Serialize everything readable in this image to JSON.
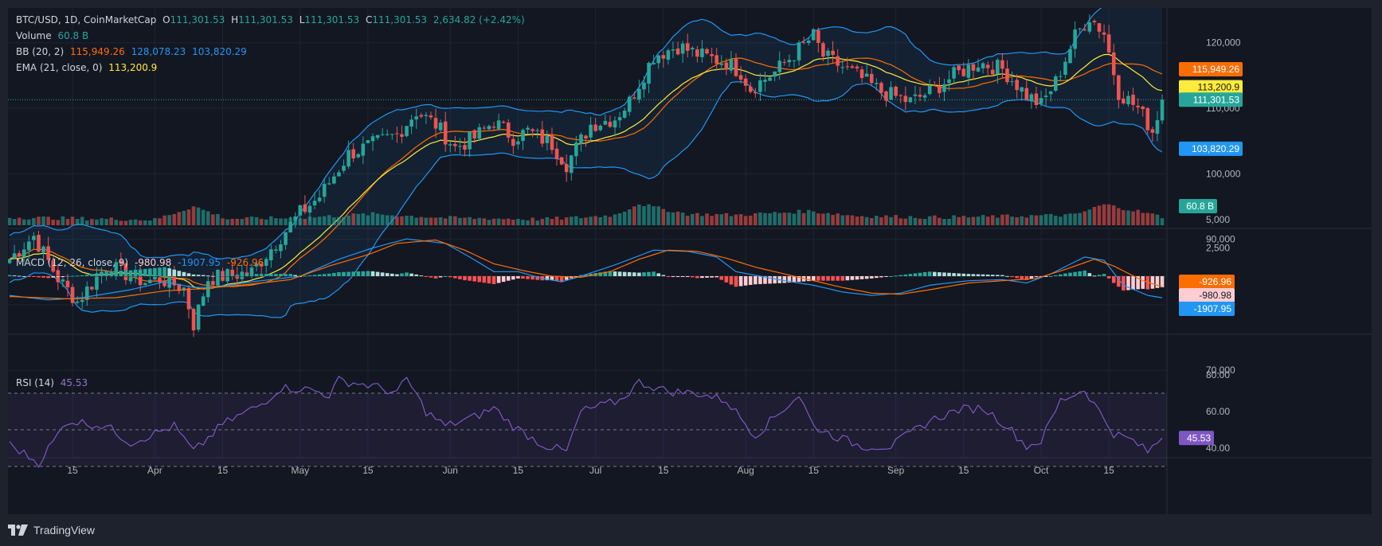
{
  "header": {
    "symbol": "BTC/USD, 1D, CoinMarketCap",
    "open_label": "O",
    "open": "111,301.53",
    "high_label": "H",
    "high": "111,301.53",
    "low_label": "L",
    "low": "111,301.53",
    "close_label": "C",
    "close": "111,301.53",
    "change": "2,634.82 (+2.42%)"
  },
  "legend": {
    "volume_label": "Volume",
    "volume_value": "60.8 B",
    "bb_label": "BB (20, 2)",
    "bb_basis": "115,949.26",
    "bb_upper": "128,078.23",
    "bb_lower": "103,820.29",
    "ema_label": "EMA (21, close, 0)",
    "ema_value": "113,200.9",
    "macd_label": "MACD (12, 26, close, 9)",
    "macd_hist": "-980.98",
    "macd_line": "-1907.95",
    "macd_signal": "-926.96",
    "rsi_label": "RSI (14)",
    "rsi_value": "45.53"
  },
  "brand": "TradingView",
  "colors": {
    "up": "#26a69a",
    "down": "#ef5350",
    "bb_band": "#2196f3",
    "bb_basis": "#ff6d00",
    "ema": "#ffeb3b",
    "macd": "#2196f3",
    "signal": "#ff6d00",
    "rsi": "#7e57c2",
    "hist_up_strong": "#26a69a",
    "hist_up_weak": "#b2dfdb",
    "hist_down_strong": "#ff5252",
    "hist_down_weak": "#ffcdd2"
  },
  "chart_data": {
    "type": "candlestick",
    "price_axis_ticks": [
      "120,000",
      "110,000",
      "100,000",
      "90,000",
      "80,000",
      "70,000"
    ],
    "price_axis_values": [
      120000,
      110000,
      100000,
      90000,
      80000,
      70000
    ],
    "macd_axis_ticks": [
      "5,000",
      "2,500"
    ],
    "macd_axis_values": [
      5000,
      2500
    ],
    "rsi_axis_ticks": [
      "80.00",
      "60.00",
      "40.00"
    ],
    "rsi_axis_values": [
      80,
      60,
      40
    ],
    "rsi_bands": [
      70,
      50,
      30
    ],
    "x_axis_ticks": [
      "15",
      "Apr",
      "15",
      "May",
      "15",
      "Jun",
      "15",
      "Jul",
      "15",
      "Aug",
      "15",
      "Sep",
      "15",
      "Oct",
      "15"
    ],
    "x_axis_days": [
      14,
      31,
      45,
      61,
      75,
      92,
      106,
      122,
      136,
      153,
      167,
      184,
      198,
      214,
      228
    ],
    "series_start_day": 1,
    "price_keypoints": [
      [
        0,
        87000
      ],
      [
        5,
        90500
      ],
      [
        10,
        84000
      ],
      [
        14,
        80500
      ],
      [
        20,
        86000
      ],
      [
        28,
        83500
      ],
      [
        31,
        84000
      ],
      [
        36,
        82500
      ],
      [
        38,
        77000
      ],
      [
        41,
        84000
      ],
      [
        50,
        85000
      ],
      [
        60,
        94000
      ],
      [
        64,
        96500
      ],
      [
        70,
        103000
      ],
      [
        75,
        104500
      ],
      [
        80,
        106000
      ],
      [
        84,
        109500
      ],
      [
        88,
        107500
      ],
      [
        92,
        104000
      ],
      [
        96,
        105500
      ],
      [
        100,
        108000
      ],
      [
        104,
        105500
      ],
      [
        107,
        106500
      ],
      [
        112,
        104500
      ],
      [
        115,
        101500
      ],
      [
        120,
        107500
      ],
      [
        125,
        108500
      ],
      [
        128,
        111000
      ],
      [
        133,
        118000
      ],
      [
        138,
        119500
      ],
      [
        143,
        118000
      ],
      [
        148,
        117000
      ],
      [
        151,
        115500
      ],
      [
        153,
        113000
      ],
      [
        158,
        115500
      ],
      [
        163,
        119000
      ],
      [
        166,
        121000
      ],
      [
        168,
        118000
      ],
      [
        175,
        115000
      ],
      [
        180,
        112500
      ],
      [
        186,
        111000
      ],
      [
        190,
        112500
      ],
      [
        195,
        115000
      ],
      [
        200,
        117000
      ],
      [
        205,
        116000
      ],
      [
        210,
        112000
      ],
      [
        213,
        110500
      ],
      [
        216,
        114000
      ],
      [
        220,
        121000
      ],
      [
        223,
        124000
      ],
      [
        226,
        121500
      ],
      [
        229,
        112500
      ],
      [
        233,
        110000
      ],
      [
        236,
        106500
      ],
      [
        238,
        111301.53
      ]
    ],
    "volume_keypoints": [
      [
        0,
        15
      ],
      [
        30,
        10
      ],
      [
        38,
        38
      ],
      [
        45,
        12
      ],
      [
        60,
        14
      ],
      [
        75,
        22
      ],
      [
        90,
        14
      ],
      [
        110,
        11
      ],
      [
        120,
        16
      ],
      [
        125,
        20
      ],
      [
        130,
        44
      ],
      [
        134,
        34
      ],
      [
        140,
        22
      ],
      [
        150,
        20
      ],
      [
        158,
        24
      ],
      [
        165,
        28
      ],
      [
        175,
        18
      ],
      [
        190,
        15
      ],
      [
        200,
        16
      ],
      [
        210,
        18
      ],
      [
        220,
        20
      ],
      [
        226,
        42
      ],
      [
        232,
        30
      ],
      [
        238,
        16
      ]
    ],
    "volume_scale_max": 100,
    "rsi_keypoints": [
      [
        0,
        42
      ],
      [
        6,
        32
      ],
      [
        12,
        55
      ],
      [
        20,
        52
      ],
      [
        25,
        43
      ],
      [
        34,
        52
      ],
      [
        38,
        38
      ],
      [
        44,
        53
      ],
      [
        52,
        64
      ],
      [
        56,
        73
      ],
      [
        62,
        72
      ],
      [
        66,
        69
      ],
      [
        68,
        77
      ],
      [
        75,
        74
      ],
      [
        80,
        70
      ],
      [
        82,
        78
      ],
      [
        86,
        60
      ],
      [
        90,
        52
      ],
      [
        96,
        57
      ],
      [
        100,
        62
      ],
      [
        104,
        52
      ],
      [
        110,
        42
      ],
      [
        115,
        38
      ],
      [
        118,
        60
      ],
      [
        126,
        66
      ],
      [
        130,
        76
      ],
      [
        136,
        71
      ],
      [
        142,
        70
      ],
      [
        148,
        66
      ],
      [
        154,
        47
      ],
      [
        158,
        57
      ],
      [
        163,
        69
      ],
      [
        166,
        52
      ],
      [
        170,
        47
      ],
      [
        176,
        41
      ],
      [
        182,
        41
      ],
      [
        190,
        55
      ],
      [
        196,
        61
      ],
      [
        201,
        62
      ],
      [
        206,
        52
      ],
      [
        210,
        41
      ],
      [
        213,
        44
      ],
      [
        217,
        66
      ],
      [
        222,
        72
      ],
      [
        225,
        60
      ],
      [
        228,
        48
      ],
      [
        232,
        44
      ],
      [
        235,
        38
      ],
      [
        238,
        45.53
      ]
    ],
    "macd_keypoints": [
      [
        0,
        -1700
      ],
      [
        8,
        -2100
      ],
      [
        15,
        -1900
      ],
      [
        25,
        -1200
      ],
      [
        32,
        -500
      ],
      [
        38,
        -1000
      ],
      [
        42,
        -1000
      ],
      [
        50,
        -500
      ],
      [
        60,
        0
      ],
      [
        68,
        1500
      ],
      [
        75,
        2500
      ],
      [
        82,
        3300
      ],
      [
        90,
        2900
      ],
      [
        95,
        1700
      ],
      [
        100,
        400
      ],
      [
        105,
        400
      ],
      [
        110,
        -200
      ],
      [
        114,
        -500
      ],
      [
        118,
        0
      ],
      [
        125,
        1000
      ],
      [
        133,
        2300
      ],
      [
        140,
        2200
      ],
      [
        146,
        1700
      ],
      [
        150,
        400
      ],
      [
        155,
        0
      ],
      [
        160,
        -400
      ],
      [
        166,
        -800
      ],
      [
        172,
        -1400
      ],
      [
        178,
        -1700
      ],
      [
        184,
        -1500
      ],
      [
        190,
        -800
      ],
      [
        198,
        -400
      ],
      [
        205,
        -300
      ],
      [
        210,
        -600
      ],
      [
        215,
        200
      ],
      [
        222,
        1700
      ],
      [
        226,
        1400
      ],
      [
        230,
        -800
      ],
      [
        235,
        -1700
      ],
      [
        238,
        -1907.95
      ]
    ],
    "signal_keypoints": [
      [
        0,
        -1800
      ],
      [
        12,
        -2000
      ],
      [
        22,
        -1900
      ],
      [
        32,
        -1300
      ],
      [
        40,
        -1100
      ],
      [
        50,
        -700
      ],
      [
        58,
        -300
      ],
      [
        66,
        900
      ],
      [
        74,
        1900
      ],
      [
        80,
        2900
      ],
      [
        88,
        3200
      ],
      [
        94,
        2300
      ],
      [
        100,
        1100
      ],
      [
        106,
        500
      ],
      [
        112,
        0
      ],
      [
        118,
        -100
      ],
      [
        124,
        400
      ],
      [
        130,
        1500
      ],
      [
        136,
        2300
      ],
      [
        142,
        2200
      ],
      [
        148,
        1600
      ],
      [
        154,
        800
      ],
      [
        160,
        200
      ],
      [
        166,
        -400
      ],
      [
        172,
        -1000
      ],
      [
        178,
        -1500
      ],
      [
        184,
        -1600
      ],
      [
        190,
        -1200
      ],
      [
        198,
        -600
      ],
      [
        205,
        -400
      ],
      [
        212,
        -200
      ],
      [
        218,
        600
      ],
      [
        224,
        1500
      ],
      [
        228,
        900
      ],
      [
        234,
        -400
      ],
      [
        238,
        -926.96
      ]
    ],
    "price_labels": [
      {
        "text": "128,078.23",
        "value": 128078.23,
        "color": "#2196f3"
      },
      {
        "text": "115,949.26",
        "value": 115949.26,
        "color": "#ff6d00"
      },
      {
        "text": "113,200.9",
        "value": 113200.9,
        "color": "#ffeb3b"
      },
      {
        "text": "111,301.53",
        "value": 111301.53,
        "color": "#26a69a"
      },
      {
        "text": "103,820.29",
        "value": 103820.29,
        "color": "#2196f3"
      }
    ],
    "volume_label": {
      "text": "60.8 B",
      "color": "#26a69a"
    },
    "macd_labels": [
      {
        "text": "-926.96",
        "value": -926.96,
        "color": "#ff6d00"
      },
      {
        "text": "-980.98",
        "value": -980.98,
        "color": "#ffcdd2"
      },
      {
        "text": "-1907.95",
        "value": -1907.95,
        "color": "#2196f3"
      }
    ],
    "rsi_label": {
      "text": "45.53",
      "value": 45.53,
      "color": "#7e57c2"
    }
  }
}
